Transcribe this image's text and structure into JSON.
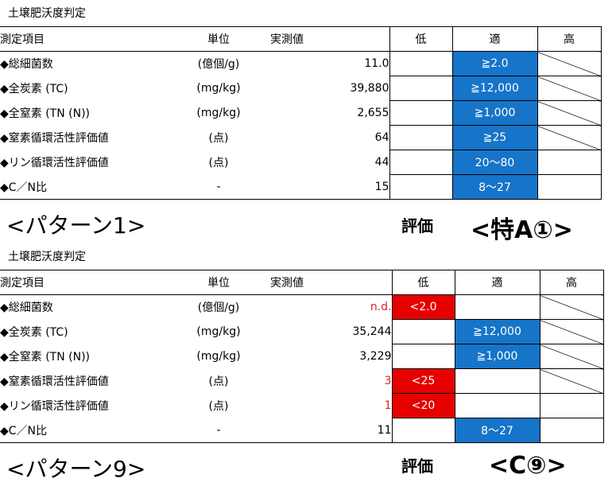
{
  "sections": [
    {
      "caption": "土壌肥沃度判定",
      "header": {
        "item": "測定項目",
        "unit": "単位",
        "value": "実測値",
        "low": "低",
        "mid": "適",
        "high": "高"
      },
      "rows": [
        {
          "name": "◆総細菌数",
          "unit": "(億個/g)",
          "value": "11.0",
          "low": "",
          "mid": "≧2.0",
          "high": ""
        },
        {
          "name": "◆全炭素 (TC)",
          "unit": "(mg/kg)",
          "value": "39,880",
          "low": "",
          "mid": "≧12,000",
          "high": ""
        },
        {
          "name": "◆全窒素 (TN (N))",
          "unit": "(mg/kg)",
          "value": "2,655",
          "low": "",
          "mid": "≧1,000",
          "high": ""
        },
        {
          "name": "◆窒素循環活性評価値",
          "unit": "(点)",
          "value": "64",
          "low": "",
          "mid": "≧25",
          "high": ""
        },
        {
          "name": "◆リン循環活性評価値",
          "unit": "(点)",
          "value": "44",
          "low": "",
          "mid": "20～80",
          "high": ""
        },
        {
          "name": "◆C／N比",
          "unit": "-",
          "value": "15",
          "low": "",
          "mid": "8～27",
          "high": ""
        }
      ],
      "pattern": "<パターン1>",
      "evaluation_label": "評価",
      "evaluation_result": "<特A①>"
    },
    {
      "caption": "土壌肥沃度判定",
      "header": {
        "item": "測定項目",
        "unit": "単位",
        "value": "実測値",
        "low": "低",
        "mid": "適",
        "high": "高"
      },
      "rows": [
        {
          "name": "◆総細菌数",
          "unit": "(億個/g)",
          "value": "n.d.",
          "low": "<2.0",
          "mid": "",
          "high": ""
        },
        {
          "name": "◆全炭素 (TC)",
          "unit": "(mg/kg)",
          "value": "35,244",
          "low": "",
          "mid": "≧12,000",
          "high": ""
        },
        {
          "name": "◆全窒素 (TN (N))",
          "unit": "(mg/kg)",
          "value": "3,229",
          "low": "",
          "mid": "≧1,000",
          "high": ""
        },
        {
          "name": "◆窒素循環活性評価値",
          "unit": "(点)",
          "value": "3",
          "low": "<25",
          "mid": "",
          "high": ""
        },
        {
          "name": "◆リン循環活性評価値",
          "unit": "(点)",
          "value": "1",
          "low": "<20",
          "mid": "",
          "high": ""
        },
        {
          "name": "◆C／N比",
          "unit": "-",
          "value": "11",
          "low": "",
          "mid": "8～27",
          "high": ""
        }
      ],
      "pattern": "<パターン9>",
      "evaluation_label": "評価",
      "evaluation_result": "<C⑨>"
    }
  ],
  "colors": {
    "appropriate": "#1674c9",
    "low": "#e60000",
    "low_value_text": "#e02020"
  }
}
